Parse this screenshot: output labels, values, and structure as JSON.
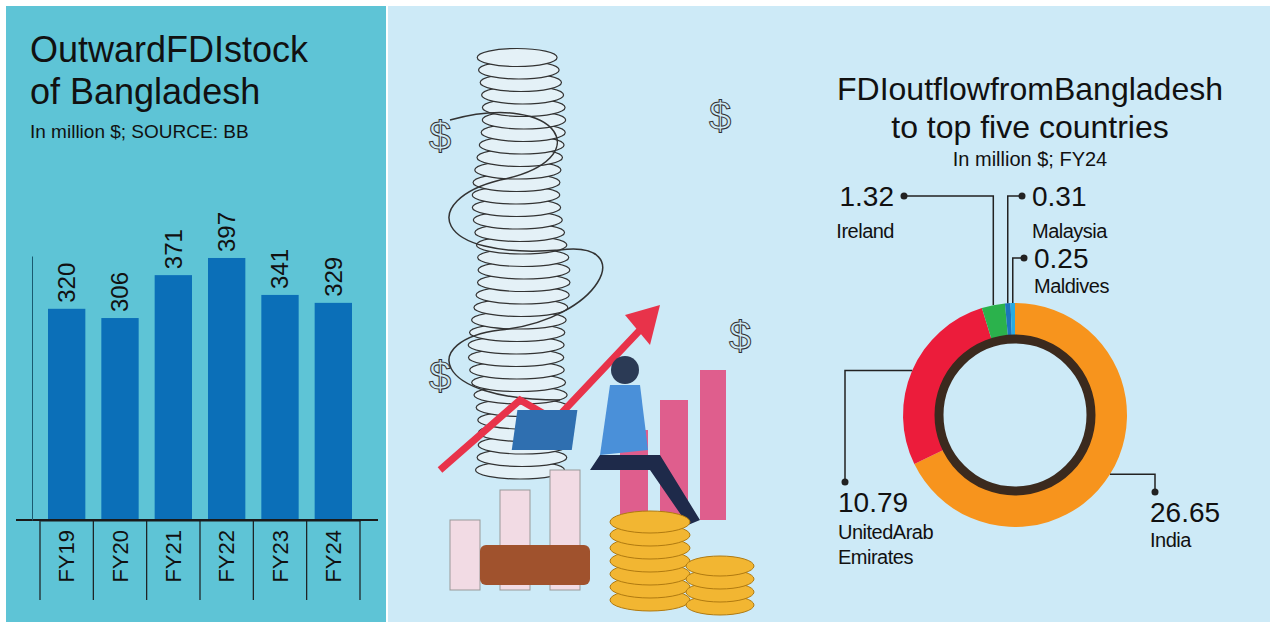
{
  "chart_data": [
    {
      "type": "bar",
      "title": "OutwardFDIstock of Bangladesh",
      "subtitle": "In million $; SOURCE: BB",
      "categories": [
        "FY19",
        "FY20",
        "FY21",
        "FY22",
        "FY23",
        "FY24"
      ],
      "values": [
        320,
        306,
        371,
        397,
        341,
        329
      ],
      "color": "#0b6fb8",
      "ylim": [
        0,
        400
      ],
      "grid": false,
      "data_labels": true,
      "tick_labels": "x"
    },
    {
      "type": "pie",
      "title": "FDIoutflowfromBangladesh to top five countries",
      "subtitle": "In million $; FY24",
      "categories": [
        "India",
        "UnitedArab Emirates",
        "Ireland",
        "Malaysia",
        "Maldives"
      ],
      "values": [
        26.65,
        10.79,
        1.32,
        0.31,
        0.25
      ],
      "colors": [
        "#f7941d",
        "#ec1c3b",
        "#2bb24c",
        "#1c75bc",
        "#29abe2"
      ],
      "data_labels": true
    }
  ]
}
